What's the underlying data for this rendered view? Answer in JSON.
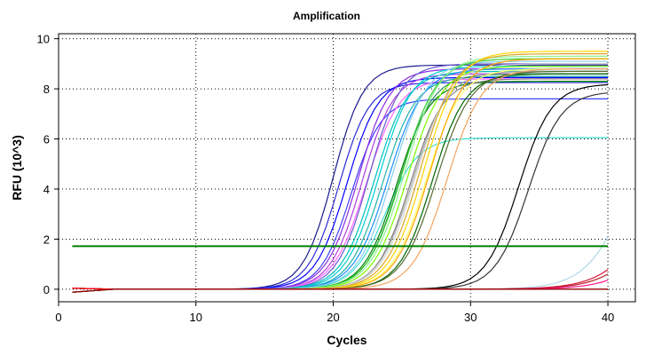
{
  "chart_data": {
    "type": "line",
    "title": "Amplification",
    "xlabel": "Cycles",
    "ylabel": "RFU (10^3)",
    "xlim": [
      0,
      42
    ],
    "ylim": [
      -0.5,
      10.2
    ],
    "xticks": [
      "0",
      "10",
      "20",
      "30",
      "40"
    ],
    "xtick_values": [
      0,
      10,
      20,
      30,
      40
    ],
    "yticks": [
      "0",
      "2",
      "4",
      "6",
      "8",
      "10"
    ],
    "ytick_values": [
      0,
      2,
      4,
      6,
      8,
      10
    ],
    "grid": "dotted",
    "legend": "none",
    "threshold": {
      "value": 1.72,
      "x": [
        1,
        40
      ],
      "color": "#008000"
    },
    "curve_model": "sigmoid: y = base + plateau / (1 + exp(-(x - midpoint) / slope)), x = cycle 1..40",
    "series": [
      {
        "color": "#1a1a8c",
        "midpoint": 20.0,
        "slope": 1.1,
        "plateau": 8.95,
        "base": 0.0
      },
      {
        "color": "#2b2bd6",
        "midpoint": 20.4,
        "slope": 1.1,
        "plateau": 8.25,
        "base": 0.0
      },
      {
        "color": "#0000ff",
        "midpoint": 21.0,
        "slope": 1.15,
        "plateau": 8.45,
        "base": 0.0
      },
      {
        "color": "#4040ff",
        "midpoint": 21.3,
        "slope": 1.1,
        "plateau": 7.6,
        "base": 0.0
      },
      {
        "color": "#8a2be2",
        "midpoint": 21.8,
        "slope": 1.15,
        "plateau": 8.8,
        "base": 0.0
      },
      {
        "color": "#b040e0",
        "midpoint": 22.1,
        "slope": 1.15,
        "plateau": 8.6,
        "base": 0.0
      },
      {
        "color": "#ff66ff",
        "midpoint": 22.4,
        "slope": 1.2,
        "plateau": 8.4,
        "base": 0.0
      },
      {
        "color": "#6a5acd",
        "midpoint": 22.6,
        "slope": 1.15,
        "plateau": 9.0,
        "base": 0.0
      },
      {
        "color": "#00bfbf",
        "midpoint": 23.0,
        "slope": 1.2,
        "plateau": 8.7,
        "base": 0.0
      },
      {
        "color": "#00ced1",
        "midpoint": 23.3,
        "slope": 1.2,
        "plateau": 8.9,
        "base": 0.0
      },
      {
        "color": "#20b2aa",
        "midpoint": 23.6,
        "slope": 1.2,
        "plateau": 8.5,
        "base": 0.0
      },
      {
        "color": "#40e0d0",
        "midpoint": 23.8,
        "slope": 1.2,
        "plateau": 6.05,
        "base": 0.0
      },
      {
        "color": "#1e90ff",
        "midpoint": 24.0,
        "slope": 1.25,
        "plateau": 8.8,
        "base": 0.0
      },
      {
        "color": "#87ceeb",
        "midpoint": 24.3,
        "slope": 1.25,
        "plateau": 9.1,
        "base": 0.0
      },
      {
        "color": "#008000",
        "midpoint": 24.6,
        "slope": 1.2,
        "plateau": 8.3,
        "base": 0.0
      },
      {
        "color": "#2e8b57",
        "midpoint": 24.8,
        "slope": 1.2,
        "plateau": 8.6,
        "base": 0.0
      },
      {
        "color": "#32cd32",
        "midpoint": 25.0,
        "slope": 1.25,
        "plateau": 9.2,
        "base": 0.0
      },
      {
        "color": "#90ee90",
        "midpoint": 25.2,
        "slope": 1.25,
        "plateau": 9.3,
        "base": 0.0
      },
      {
        "color": "#7cfc00",
        "midpoint": 25.4,
        "slope": 1.25,
        "plateau": 8.9,
        "base": 0.0
      },
      {
        "color": "#808080",
        "midpoint": 25.6,
        "slope": 1.2,
        "plateau": 8.4,
        "base": 0.0
      },
      {
        "color": "#a9a9a9",
        "midpoint": 25.8,
        "slope": 1.25,
        "plateau": 8.7,
        "base": 0.0
      },
      {
        "color": "#d3d3d3",
        "midpoint": 26.0,
        "slope": 1.25,
        "plateau": 9.0,
        "base": 0.0
      },
      {
        "color": "#daa520",
        "midpoint": 26.3,
        "slope": 1.25,
        "plateau": 9.4,
        "base": 0.0
      },
      {
        "color": "#ffd700",
        "midpoint": 26.6,
        "slope": 1.25,
        "plateau": 9.5,
        "base": 0.0
      },
      {
        "color": "#ffff66",
        "midpoint": 26.8,
        "slope": 1.25,
        "plateau": 8.8,
        "base": 0.0
      },
      {
        "color": "#ffa500",
        "midpoint": 27.0,
        "slope": 1.25,
        "plateau": 9.2,
        "base": 0.0
      },
      {
        "color": "#006400",
        "midpoint": 27.2,
        "slope": 1.2,
        "plateau": 8.6,
        "base": 0.0
      },
      {
        "color": "#556b2f",
        "midpoint": 27.5,
        "slope": 1.25,
        "plateau": 8.7,
        "base": 0.0
      },
      {
        "color": "#f4a460",
        "midpoint": 28.3,
        "slope": 1.25,
        "plateau": 8.8,
        "base": 0.0
      },
      {
        "color": "#000000",
        "midpoint": 33.5,
        "slope": 1.2,
        "plateau": 8.2,
        "base": 0.0
      },
      {
        "color": "#333333",
        "midpoint": 34.2,
        "slope": 1.2,
        "plateau": 7.9,
        "base": 0.0
      },
      {
        "color": "#add8e6",
        "midpoint": 41.8,
        "slope": 1.6,
        "plateau": 8.5,
        "base": 0.0
      },
      {
        "color": "#dc143c",
        "midpoint": 44.0,
        "slope": 1.8,
        "plateau": 8.0,
        "base": 0.0
      },
      {
        "color": "#b22222",
        "midpoint": 44.5,
        "slope": 1.8,
        "plateau": 8.0,
        "base": 0.0
      },
      {
        "color": "#ff1493",
        "midpoint": 45.5,
        "slope": 1.8,
        "plateau": 8.0,
        "base": 0.0
      },
      {
        "color": "#ff0000",
        "midpoint": 60.0,
        "slope": 2.0,
        "plateau": 8.0,
        "base": 0.0
      },
      {
        "color": "#8b0000",
        "midpoint": 60.0,
        "slope": 2.0,
        "plateau": 8.0,
        "base": 0.0
      }
    ]
  }
}
